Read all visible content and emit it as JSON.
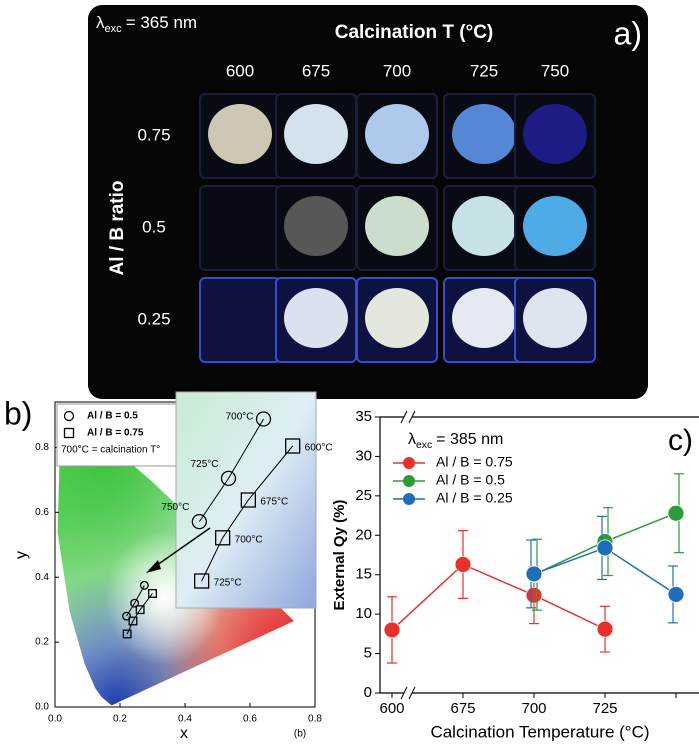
{
  "panel_a": {
    "label": "a)",
    "excitation": {
      "symbol": "λ",
      "subscript": "exc",
      "text": "= 365 nm"
    },
    "column_title": "Calcination T (°C)",
    "columns": [
      "600",
      "675",
      "700",
      "725",
      "750"
    ],
    "row_title": "Al / B ratio",
    "rows": [
      "0.75",
      "0.5",
      "0.25"
    ]
  },
  "chart_data": [
    {
      "type": "scatter",
      "label": "b)",
      "footnote": "(b)",
      "xlabel": "x",
      "ylabel": "y",
      "note": "700°C = calcination T°",
      "xlim": [
        0,
        0.8
      ],
      "xticks": [
        {
          "value": 0,
          "label": "0.0"
        },
        0.2,
        0.4,
        0.6,
        0.8
      ],
      "ylim": [
        0,
        0.94
      ],
      "yticks": [
        {
          "value": 0,
          "label": "0.0"
        },
        0.2,
        0.4,
        0.6,
        0.8
      ],
      "series": [
        {
          "name": "Al / B = 0.5",
          "marker": "circle",
          "x": [
            0.22,
            0.245,
            0.275
          ],
          "y": [
            0.28,
            0.32,
            0.375
          ],
          "point_labels": [
            "750°C",
            "725°C",
            "700°C"
          ]
        },
        {
          "name": "Al / B = 0.75",
          "marker": "square",
          "x": [
            0.3,
            0.262,
            0.24,
            0.222
          ],
          "y": [
            0.35,
            0.3,
            0.265,
            0.225
          ],
          "point_labels": [
            "600°C",
            "675°C",
            "700°C",
            "725°C"
          ]
        }
      ]
    },
    {
      "type": "line",
      "label": "c)",
      "excitation": {
        "symbol": "λ",
        "subscript": "exc",
        "text": "= 385 nm"
      },
      "xlabel": "Calcination Temperature (°C)",
      "ylabel": "External Qy (%)",
      "categories": [
        "600",
        "675",
        "700",
        "725",
        null
      ],
      "ylim": [
        0,
        35
      ],
      "yticks": [
        0,
        5,
        10,
        15,
        20,
        25,
        30,
        35
      ],
      "series": [
        {
          "name": "Al / B = 0.75",
          "color": "#e8302c",
          "values": [
            8,
            16.3,
            12.4,
            8.1,
            null
          ],
          "errors": [
            4.2,
            4.3,
            3.6,
            2.9,
            null
          ]
        },
        {
          "name": "Al / B = 0.5",
          "color": "#2e9a3a",
          "values": [
            null,
            null,
            15,
            19.2,
            22.8
          ],
          "errors": [
            null,
            null,
            4.5,
            4.3,
            5
          ]
        },
        {
          "name": "Al / B = 0.25",
          "color": "#1f6fb8",
          "values": [
            null,
            null,
            15.1,
            18.4,
            12.5
          ],
          "errors": [
            null,
            null,
            4.3,
            4,
            3.6
          ]
        }
      ]
    }
  ]
}
